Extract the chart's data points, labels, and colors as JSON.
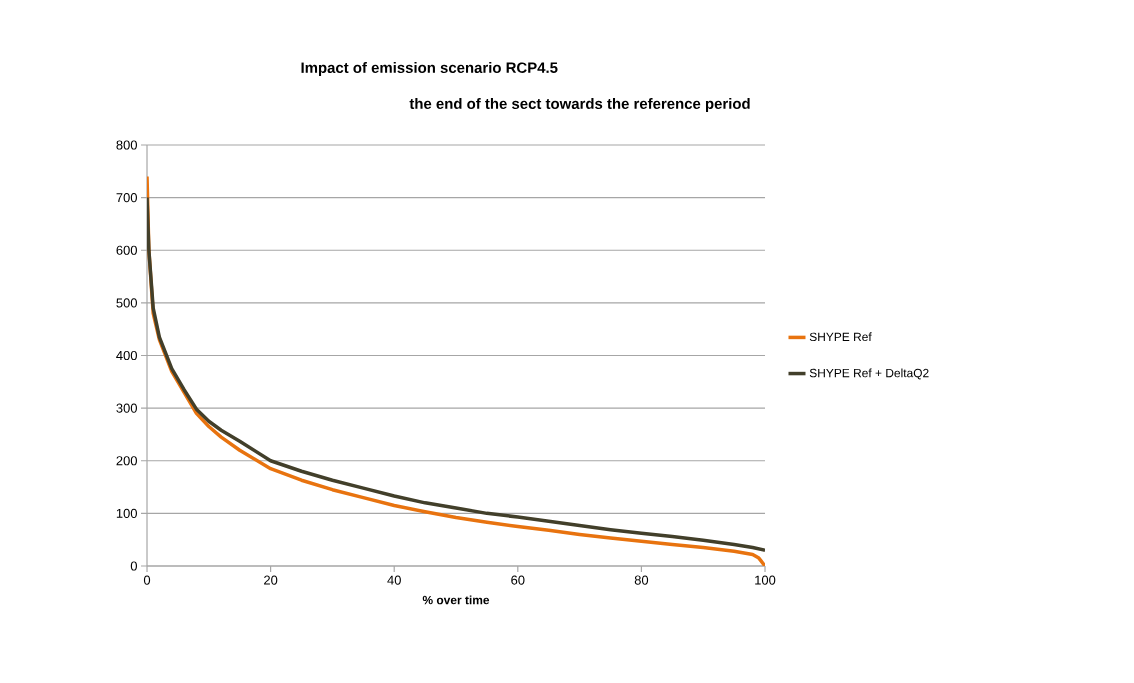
{
  "chart_data": {
    "type": "line",
    "title": "Impact of emission scenario RCP4.5",
    "subtitle": "the end of the sect towards the reference period",
    "xlabel": "% over time",
    "xlim": [
      0,
      100
    ],
    "xticks": [
      0,
      20,
      40,
      60,
      80,
      100
    ],
    "ylim": [
      0,
      800
    ],
    "yticks": [
      0,
      100,
      200,
      300,
      400,
      500,
      600,
      700,
      800
    ],
    "grid": "y",
    "legend": "right",
    "marker": "none",
    "line_style": "solid",
    "series": [
      {
        "name": "SHYPE Ref",
        "color": "#e8730f",
        "x": [
          0,
          0.3,
          1,
          2,
          4,
          6,
          8,
          10,
          12,
          15,
          20,
          25,
          30,
          35,
          40,
          45,
          50,
          55,
          60,
          65,
          70,
          75,
          80,
          85,
          90,
          95,
          98,
          99,
          100
        ],
        "values": [
          740,
          600,
          480,
          430,
          370,
          330,
          290,
          265,
          245,
          220,
          185,
          163,
          145,
          130,
          115,
          103,
          92,
          83,
          75,
          68,
          60,
          53,
          47,
          41,
          35,
          28,
          22,
          15,
          0
        ]
      },
      {
        "name": "SHYPE Ref + DeltaQ2",
        "color": "#423f2a",
        "x": [
          0,
          0.3,
          1,
          2,
          4,
          6,
          8,
          10,
          12,
          15,
          20,
          25,
          30,
          35,
          40,
          45,
          50,
          55,
          60,
          65,
          70,
          75,
          80,
          85,
          90,
          95,
          98,
          100
        ],
        "values": [
          700,
          600,
          490,
          435,
          375,
          335,
          298,
          275,
          258,
          237,
          200,
          180,
          163,
          148,
          133,
          120,
          110,
          100,
          93,
          85,
          77,
          69,
          62,
          56,
          49,
          41,
          35,
          30
        ]
      }
    ]
  }
}
